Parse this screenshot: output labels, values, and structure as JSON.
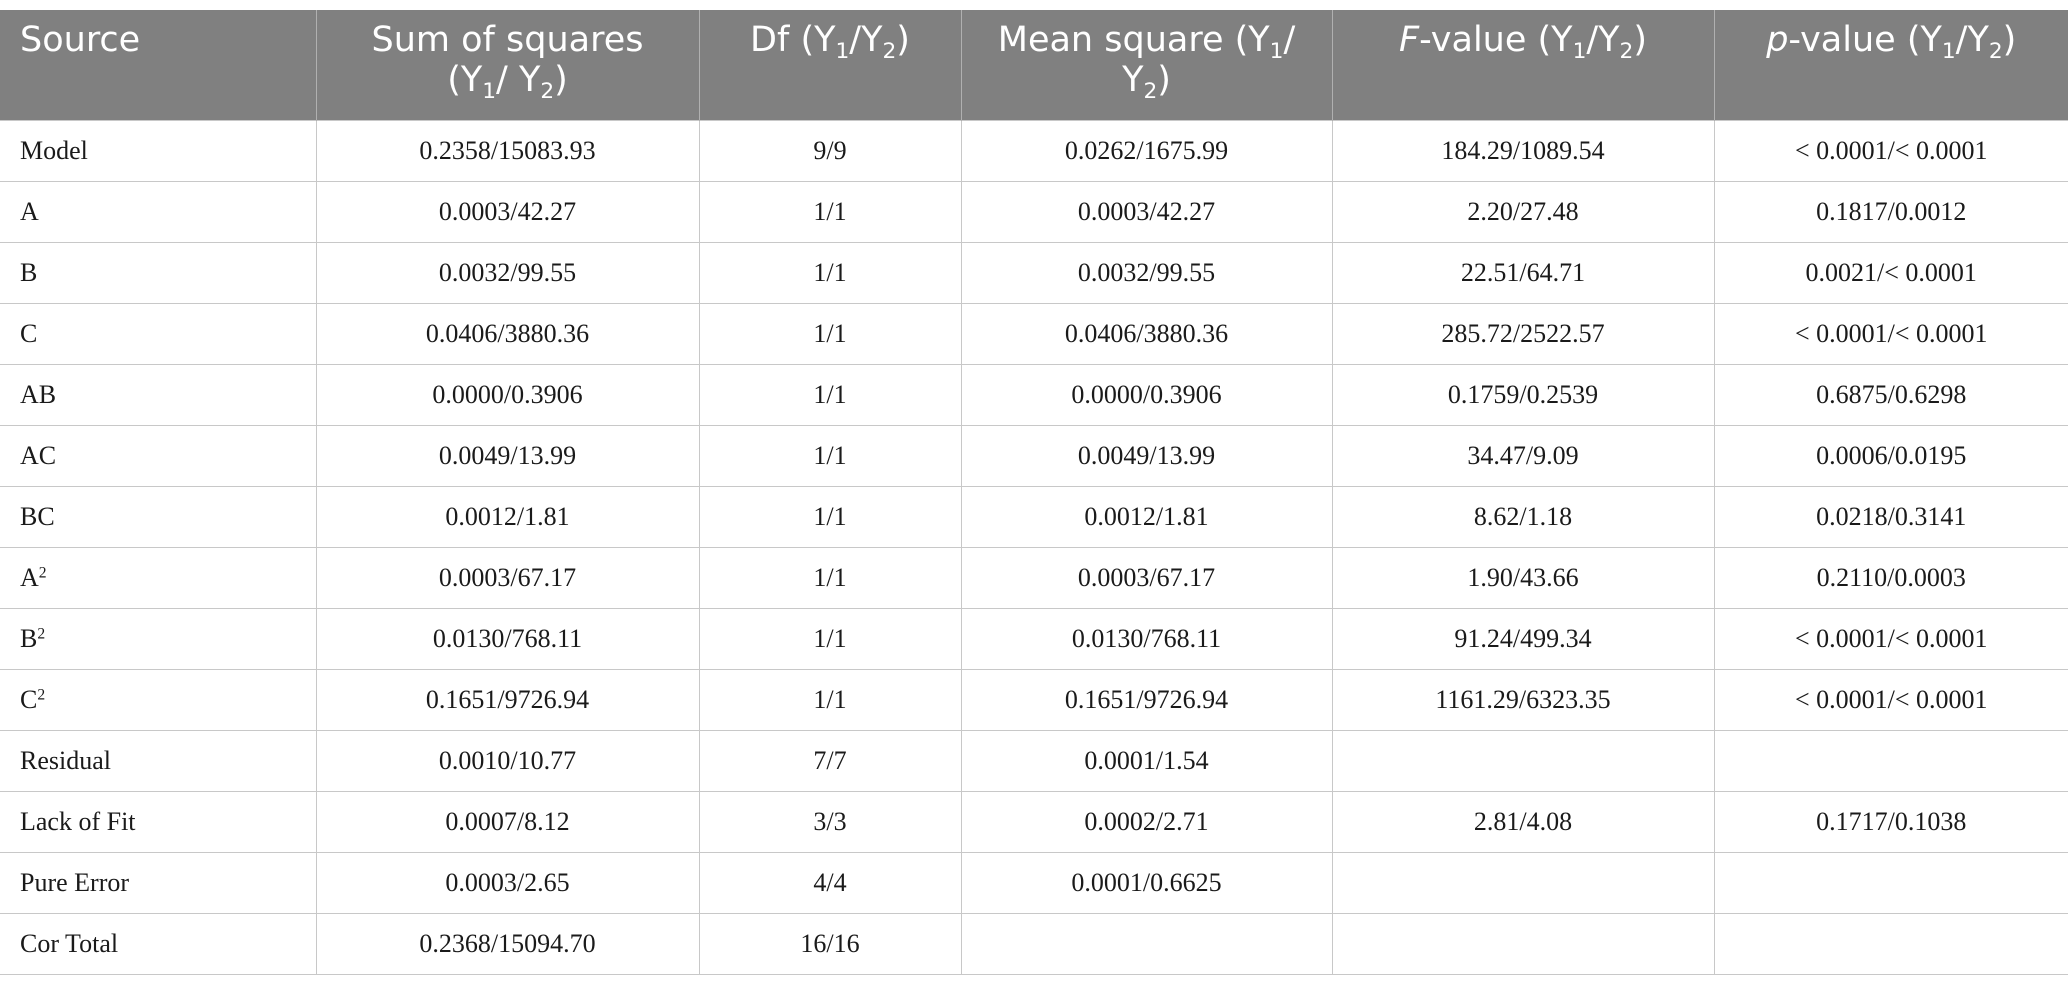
{
  "table": {
    "headers": {
      "source": "Source",
      "sum_of_squares": {
        "text": "Sum of squares (Y",
        "s1": "1",
        "mid": "/ Y",
        "s2": "2",
        "end": ")"
      },
      "df": {
        "text": "Df (Y",
        "s1": "1",
        "mid": "/Y",
        "s2": "2",
        "end": ")"
      },
      "mean_square": {
        "text": "Mean square (Y",
        "s1": "1",
        "mid": "/ Y",
        "s2": "2",
        "end": ")"
      },
      "f_value": {
        "italic": "F",
        "text": "-value (Y",
        "s1": "1",
        "mid": "/Y",
        "s2": "2",
        "end": ")"
      },
      "p_value": {
        "italic": "p",
        "text": "-value (Y",
        "s1": "1",
        "mid": "/Y",
        "s2": "2",
        "end": ")"
      }
    },
    "rows": [
      {
        "source": "Model",
        "sup": "",
        "ss": "0.2358/15083.93",
        "df": "9/9",
        "ms": "0.0262/1675.99",
        "f": "184.29/1089.54",
        "p": "< 0.0001/< 0.0001"
      },
      {
        "source": "A",
        "sup": "",
        "ss": "0.0003/42.27",
        "df": "1/1",
        "ms": "0.0003/42.27",
        "f": "2.20/27.48",
        "p": "0.1817/0.0012"
      },
      {
        "source": "B",
        "sup": "",
        "ss": "0.0032/99.55",
        "df": "1/1",
        "ms": "0.0032/99.55",
        "f": "22.51/64.71",
        "p": "0.0021/< 0.0001"
      },
      {
        "source": "C",
        "sup": "",
        "ss": "0.0406/3880.36",
        "df": "1/1",
        "ms": "0.0406/3880.36",
        "f": "285.72/2522.57",
        "p": "< 0.0001/< 0.0001"
      },
      {
        "source": "AB",
        "sup": "",
        "ss": "0.0000/0.3906",
        "df": "1/1",
        "ms": "0.0000/0.3906",
        "f": "0.1759/0.2539",
        "p": "0.6875/0.6298"
      },
      {
        "source": "AC",
        "sup": "",
        "ss": "0.0049/13.99",
        "df": "1/1",
        "ms": "0.0049/13.99",
        "f": "34.47/9.09",
        "p": "0.0006/0.0195"
      },
      {
        "source": "BC",
        "sup": "",
        "ss": "0.0012/1.81",
        "df": "1/1",
        "ms": "0.0012/1.81",
        "f": "8.62/1.18",
        "p": "0.0218/0.3141"
      },
      {
        "source": "A",
        "sup": "2",
        "ss": "0.0003/67.17",
        "df": "1/1",
        "ms": "0.0003/67.17",
        "f": "1.90/43.66",
        "p": "0.2110/0.0003"
      },
      {
        "source": "B",
        "sup": "2",
        "ss": "0.0130/768.11",
        "df": "1/1",
        "ms": "0.0130/768.11",
        "f": "91.24/499.34",
        "p": "< 0.0001/< 0.0001"
      },
      {
        "source": "C",
        "sup": "2",
        "ss": "0.1651/9726.94",
        "df": "1/1",
        "ms": "0.1651/9726.94",
        "f": "1161.29/6323.35",
        "p": "< 0.0001/< 0.0001"
      },
      {
        "source": "Residual",
        "sup": "",
        "ss": "0.0010/10.77",
        "df": "7/7",
        "ms": "0.0001/1.54",
        "f": "",
        "p": ""
      },
      {
        "source": "Lack of Fit",
        "sup": "",
        "ss": "0.0007/8.12",
        "df": "3/3",
        "ms": "0.0002/2.71",
        "f": "2.81/4.08",
        "p": "0.1717/0.1038"
      },
      {
        "source": "Pure Error",
        "sup": "",
        "ss": "0.0003/2.65",
        "df": "4/4",
        "ms": "0.0001/0.6625",
        "f": "",
        "p": ""
      },
      {
        "source": "Cor Total",
        "sup": "",
        "ss": "0.2368/15094.70",
        "df": "16/16",
        "ms": "",
        "f": "",
        "p": ""
      }
    ]
  }
}
